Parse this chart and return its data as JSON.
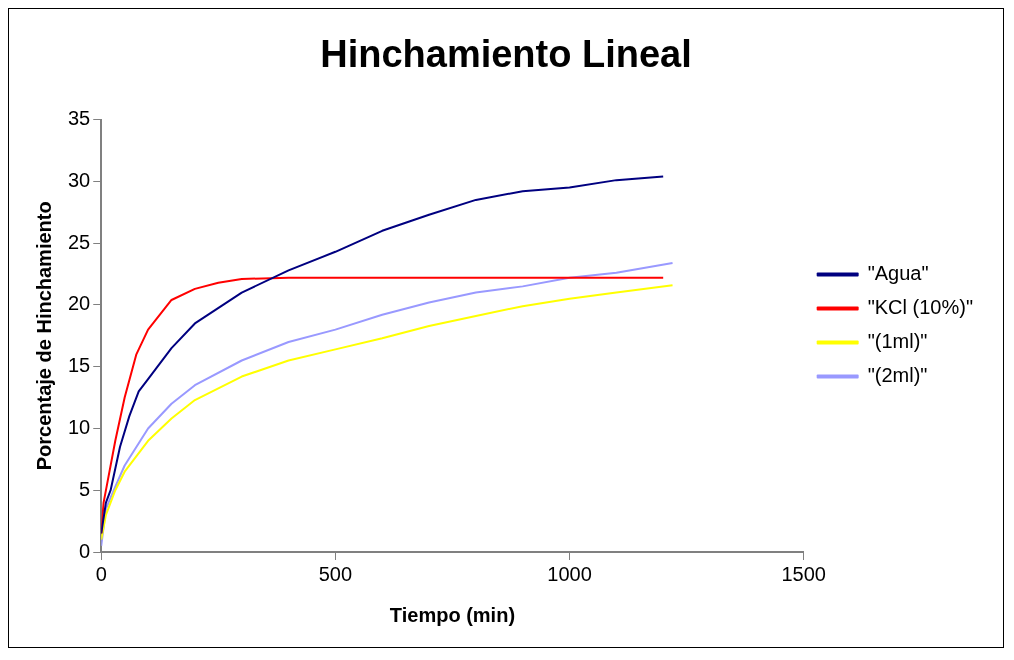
{
  "chart_data": {
    "type": "line",
    "title": "Hinchamiento Lineal",
    "xlabel": "Tiempo (min)",
    "ylabel": "Porcentaje de Hinchamiento",
    "xlim": [
      0,
      1500
    ],
    "xticks": [
      0,
      500,
      1000,
      1500
    ],
    "ylim": [
      0,
      35
    ],
    "yticks": [
      0,
      5,
      10,
      15,
      20,
      25,
      30,
      35
    ],
    "grid": false,
    "legend": "right",
    "marker": "none",
    "line_style": "solid",
    "series": [
      {
        "name": "\"Agua\"",
        "color": "#000080",
        "x": [
          0,
          10,
          20,
          40,
          60,
          80,
          100,
          150,
          200,
          300,
          400,
          500,
          600,
          700,
          800,
          900,
          1000,
          1100,
          1200
        ],
        "values": [
          1.5,
          4,
          5,
          8.5,
          11,
          13,
          14,
          16.5,
          18.5,
          21,
          22.8,
          24.3,
          26,
          27.3,
          28.5,
          29.2,
          29.5,
          30.1,
          30.4
        ]
      },
      {
        "name": "\"KCl (10%)\"",
        "color": "#ff0000",
        "x": [
          0,
          5,
          15,
          30,
          50,
          75,
          100,
          150,
          200,
          250,
          300,
          400,
          500,
          700,
          1000,
          1200
        ],
        "values": [
          1.5,
          4,
          6,
          9,
          12.5,
          16,
          18,
          20.4,
          21.3,
          21.8,
          22.1,
          22.2,
          22.2,
          22.2,
          22.2,
          22.2
        ]
      },
      {
        "name": "\"(1ml)\"",
        "color": "#ffff00",
        "x": [
          0,
          10,
          30,
          50,
          100,
          150,
          200,
          300,
          400,
          500,
          600,
          700,
          800,
          900,
          1000,
          1100,
          1220
        ],
        "values": [
          1,
          3,
          5,
          6.5,
          9,
          10.8,
          12.3,
          14.2,
          15.5,
          16.4,
          17.3,
          18.3,
          19.1,
          19.9,
          20.5,
          21,
          21.6
        ]
      },
      {
        "name": "\"(2ml)\"",
        "color": "#9999ff",
        "x": [
          0,
          10,
          30,
          50,
          100,
          150,
          200,
          300,
          400,
          500,
          600,
          700,
          800,
          900,
          1000,
          1100,
          1220
        ],
        "values": [
          0.5,
          3.5,
          5.3,
          7,
          10,
          12,
          13.5,
          15.5,
          17,
          18,
          19.2,
          20.2,
          21,
          21.5,
          22.2,
          22.6,
          23.4
        ]
      }
    ]
  }
}
